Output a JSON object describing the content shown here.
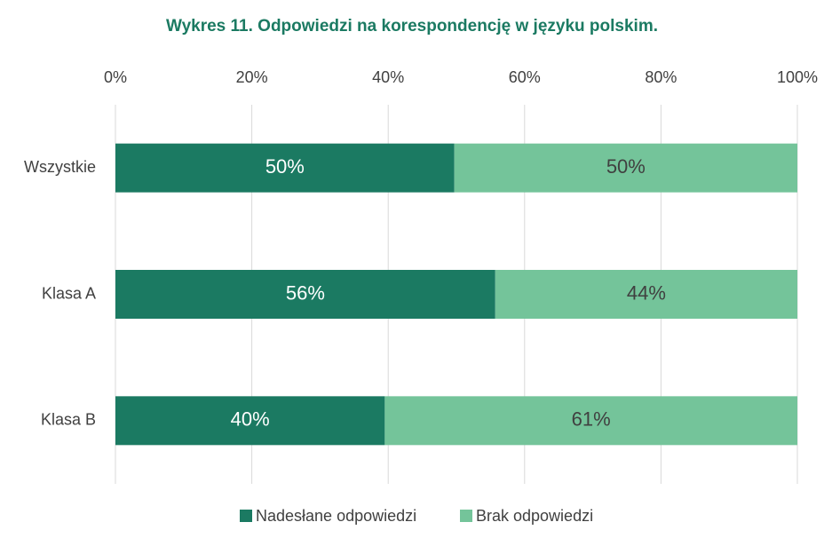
{
  "chart_data": {
    "type": "stacked_barh",
    "title": "Wykres 11. Odpowiedzi na korespondencję w języku polskim.",
    "categories": [
      "Wszystkie",
      "Klasa A",
      "Klasa B"
    ],
    "series": [
      {
        "name": "Nadesłane odpowiedzi",
        "color": "#1b7a62",
        "values": [
          49.7,
          55.7,
          39.5
        ],
        "value_labels": [
          "50%",
          "56%",
          "40%"
        ]
      },
      {
        "name": "Brak odpowiedzi",
        "color": "#74c49a",
        "values": [
          50.3,
          44.3,
          60.5
        ],
        "value_labels": [
          "50%",
          "44%",
          "61%"
        ]
      }
    ],
    "xlim": [
      0,
      100
    ],
    "xticks": [
      {
        "value": 0,
        "label": "0%"
      },
      {
        "value": 20,
        "label": "20%"
      },
      {
        "value": 40,
        "label": "40%"
      },
      {
        "value": 60,
        "label": "60%"
      },
      {
        "value": 80,
        "label": "80%"
      },
      {
        "value": 100,
        "label": "100%"
      }
    ],
    "grid": true,
    "legend": "bottom"
  }
}
